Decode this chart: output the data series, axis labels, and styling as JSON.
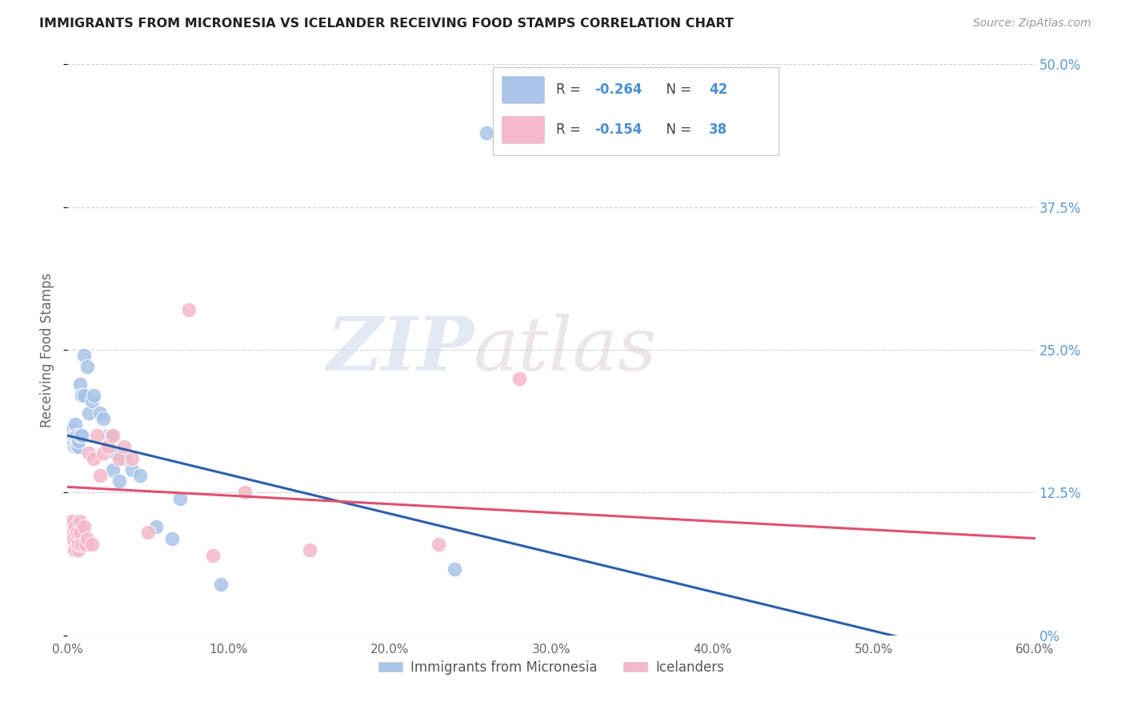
{
  "title": "IMMIGRANTS FROM MICRONESIA VS ICELANDER RECEIVING FOOD STAMPS CORRELATION CHART",
  "source": "Source: ZipAtlas.com",
  "ylabel": "Receiving Food Stamps",
  "xlim": [
    0,
    0.6
  ],
  "ylim": [
    0,
    0.5
  ],
  "xticks": [
    0.0,
    0.1,
    0.2,
    0.3,
    0.4,
    0.5,
    0.6
  ],
  "yticks": [
    0.0,
    0.125,
    0.25,
    0.375,
    0.5
  ],
  "legend_blue_label": "Immigrants from Micronesia",
  "legend_pink_label": "Icelanders",
  "legend_r_blue_val": "-0.264",
  "legend_n_blue_val": "42",
  "legend_r_pink_val": "-0.154",
  "legend_n_pink_val": "38",
  "blue_color": "#a8c4e8",
  "pink_color": "#f4b8c8",
  "blue_line_color": "#2c5faa",
  "pink_line_color": "#e05070",
  "text_dark": "#444444",
  "text_blue": "#4a90d0",
  "watermark_color": "#d0d8e8",
  "blue_x": [
    0.001,
    0.002,
    0.002,
    0.003,
    0.003,
    0.003,
    0.004,
    0.004,
    0.004,
    0.005,
    0.005,
    0.005,
    0.006,
    0.006,
    0.007,
    0.007,
    0.008,
    0.008,
    0.009,
    0.009,
    0.01,
    0.01,
    0.012,
    0.013,
    0.015,
    0.016,
    0.02,
    0.022,
    0.025,
    0.027,
    0.028,
    0.03,
    0.032,
    0.035,
    0.04,
    0.045,
    0.055,
    0.065,
    0.07,
    0.095,
    0.24,
    0.26
  ],
  "blue_y": [
    0.175,
    0.17,
    0.18,
    0.17,
    0.175,
    0.18,
    0.165,
    0.17,
    0.175,
    0.165,
    0.175,
    0.185,
    0.165,
    0.175,
    0.165,
    0.17,
    0.175,
    0.22,
    0.175,
    0.21,
    0.21,
    0.245,
    0.235,
    0.195,
    0.205,
    0.21,
    0.195,
    0.19,
    0.175,
    0.175,
    0.145,
    0.16,
    0.135,
    0.155,
    0.145,
    0.14,
    0.095,
    0.085,
    0.12,
    0.045,
    0.058,
    0.44
  ],
  "pink_x": [
    0.001,
    0.002,
    0.002,
    0.003,
    0.003,
    0.003,
    0.004,
    0.004,
    0.005,
    0.005,
    0.006,
    0.006,
    0.007,
    0.007,
    0.008,
    0.008,
    0.009,
    0.01,
    0.011,
    0.012,
    0.013,
    0.015,
    0.016,
    0.018,
    0.02,
    0.022,
    0.025,
    0.028,
    0.032,
    0.035,
    0.04,
    0.05,
    0.075,
    0.09,
    0.11,
    0.15,
    0.23,
    0.28
  ],
  "pink_y": [
    0.095,
    0.085,
    0.09,
    0.085,
    0.09,
    0.1,
    0.075,
    0.085,
    0.095,
    0.075,
    0.085,
    0.09,
    0.075,
    0.08,
    0.09,
    0.1,
    0.08,
    0.095,
    0.08,
    0.085,
    0.16,
    0.08,
    0.155,
    0.175,
    0.14,
    0.16,
    0.165,
    0.175,
    0.155,
    0.165,
    0.155,
    0.09,
    0.285,
    0.07,
    0.125,
    0.075,
    0.08,
    0.225
  ]
}
